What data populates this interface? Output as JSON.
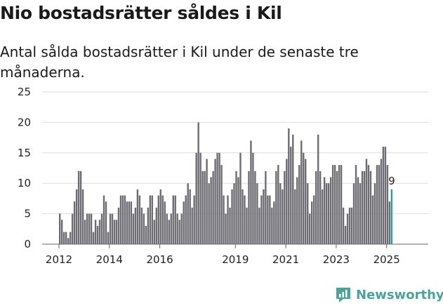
{
  "header": {
    "title": "Nio bostadsrätter såldes i Kil",
    "subtitle": "Antal sålda bostadsrätter i Kil under de senaste tre månaderna."
  },
  "brand": {
    "name": "Newsworthy"
  },
  "colors": {
    "bar": "#6d6c73",
    "highlight": "#2a9d9a",
    "grid": "#dddddd",
    "brand": "#4aa39a"
  },
  "chart_data": {
    "type": "bar",
    "title": "Nio bostadsrätter såldes i Kil",
    "subtitle": "Antal sålda bostadsrätter i Kil under de senaste tre månaderna.",
    "xlabel": "",
    "ylabel": "",
    "ylim": [
      0,
      25
    ],
    "yticks": [
      0,
      5,
      10,
      15,
      20,
      25
    ],
    "xlim": [
      2012,
      2026
    ],
    "xticks": [
      {
        "year": 2012,
        "label": "2012"
      },
      {
        "year": 2014,
        "label": "2014"
      },
      {
        "year": 2016,
        "label": "2016"
      },
      {
        "year": 2019,
        "label": "2019"
      },
      {
        "year": 2021,
        "label": "2021"
      },
      {
        "year": 2023,
        "label": "2023"
      },
      {
        "year": 2025,
        "label": "2025"
      }
    ],
    "start": "2012-01",
    "frequency": "monthly",
    "values": [
      5,
      4,
      2,
      2,
      1,
      2,
      5,
      7,
      9,
      12,
      12,
      9,
      4,
      5,
      5,
      5,
      2,
      4,
      3,
      4,
      5,
      8,
      7,
      2,
      5,
      5,
      4,
      4,
      6,
      8,
      8,
      8,
      7,
      7,
      7,
      5,
      6,
      9,
      8,
      6,
      5,
      3,
      6,
      8,
      8,
      4,
      6,
      8,
      9,
      8,
      7,
      5,
      4,
      5,
      8,
      8,
      5,
      4,
      5,
      7,
      8,
      10,
      9,
      6,
      8,
      15,
      20,
      15,
      12,
      12,
      14,
      10,
      11,
      12,
      14,
      15,
      15,
      13,
      8,
      5,
      8,
      6,
      9,
      10,
      12,
      11,
      15,
      9,
      8,
      6,
      12,
      17,
      15,
      12,
      10,
      6,
      8,
      9,
      12,
      8,
      8,
      6,
      7,
      12,
      13,
      10,
      9,
      12,
      14,
      19,
      16,
      18,
      9,
      11,
      13,
      17,
      15,
      14,
      10,
      5,
      7,
      8,
      12,
      18,
      12,
      9,
      11,
      10,
      10,
      11,
      13,
      13,
      12,
      13,
      13,
      6,
      3,
      5,
      6,
      6,
      10,
      13,
      11,
      10,
      12,
      12,
      14,
      13,
      12,
      8,
      10,
      13,
      13,
      14,
      16,
      16,
      13,
      7,
      9
    ],
    "highlight_last_n": 1,
    "last_value_label": "9"
  }
}
